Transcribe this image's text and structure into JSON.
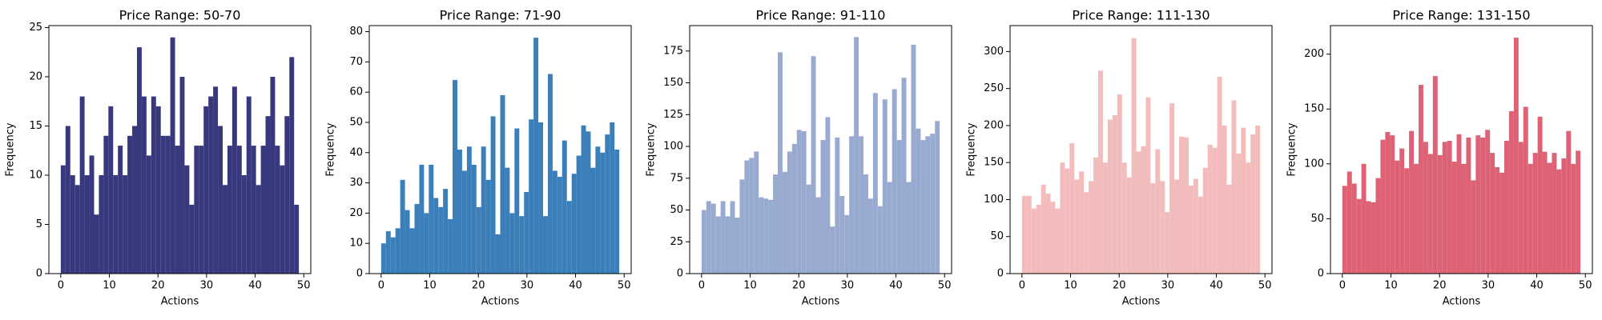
{
  "chart_data": [
    {
      "type": "histogram",
      "title": "Price Range: 50-70",
      "xlabel": "Actions",
      "ylabel": "Frequency",
      "color": "#38387f",
      "bins": [
        0,
        0.98,
        1.96,
        2.94,
        3.92,
        4.9,
        5.88,
        6.86,
        7.84,
        8.82,
        9.8,
        10.78,
        11.76,
        12.74,
        13.72,
        14.7,
        15.68,
        16.66,
        17.64,
        18.62,
        19.6,
        20.58,
        21.56,
        22.54,
        23.52,
        24.5,
        25.48,
        26.46,
        27.44,
        28.42,
        29.4,
        30.38,
        31.36,
        32.34,
        33.32,
        34.3,
        35.28,
        36.26,
        37.24,
        38.22,
        39.2,
        40.18,
        41.16,
        42.14,
        43.12,
        44.1,
        45.08,
        46.06,
        47.04,
        48.02,
        49
      ],
      "values": [
        11,
        15,
        10,
        9,
        18,
        10,
        12,
        6,
        10,
        14,
        17,
        10,
        13,
        10,
        14,
        15,
        23,
        18,
        12,
        18,
        17,
        14,
        14,
        24,
        13,
        20,
        11,
        7,
        13,
        13,
        17,
        18,
        19,
        15,
        9,
        13,
        19,
        13,
        10,
        18,
        13,
        9,
        13,
        16,
        20,
        13,
        11,
        16,
        22,
        7
      ],
      "xlim": [
        -2.45,
        51.45
      ],
      "ylim": [
        0,
        25.2
      ],
      "xticks": [
        0,
        10,
        20,
        30,
        40,
        50
      ],
      "yticks": [
        0,
        5,
        10,
        15,
        20,
        25
      ]
    },
    {
      "type": "histogram",
      "title": "Price Range: 71-90",
      "xlabel": "Actions",
      "ylabel": "Frequency",
      "color": "#3a7fba",
      "bins": [
        0,
        0.98,
        1.96,
        2.94,
        3.92,
        4.9,
        5.88,
        6.86,
        7.84,
        8.82,
        9.8,
        10.78,
        11.76,
        12.74,
        13.72,
        14.7,
        15.68,
        16.66,
        17.64,
        18.62,
        19.6,
        20.58,
        21.56,
        22.54,
        23.52,
        24.5,
        25.48,
        26.46,
        27.44,
        28.42,
        29.4,
        30.38,
        31.36,
        32.34,
        33.32,
        34.3,
        35.28,
        36.26,
        37.24,
        38.22,
        39.2,
        40.18,
        41.16,
        42.14,
        43.12,
        44.1,
        45.08,
        46.06,
        47.04,
        48.02,
        49
      ],
      "values": [
        10,
        14,
        12,
        15,
        31,
        21,
        15,
        23,
        36,
        20,
        36,
        25,
        22,
        28,
        18,
        64,
        41,
        34,
        42,
        36,
        22,
        42,
        31,
        52,
        13,
        59,
        35,
        20,
        48,
        19,
        27,
        51,
        78,
        50,
        19,
        66,
        34,
        32,
        44,
        24,
        33,
        39,
        49,
        47,
        35,
        42,
        40,
        46,
        50,
        41
      ],
      "xlim": [
        -2.45,
        51.45
      ],
      "ylim": [
        0,
        82
      ],
      "xticks": [
        0,
        10,
        20,
        30,
        40,
        50
      ],
      "yticks": [
        0,
        10,
        20,
        30,
        40,
        50,
        60,
        70,
        80
      ]
    },
    {
      "type": "histogram",
      "title": "Price Range: 91-110",
      "xlabel": "Actions",
      "ylabel": "Frequency",
      "color": "#99aad1",
      "bins": [
        0,
        0.98,
        1.96,
        2.94,
        3.92,
        4.9,
        5.88,
        6.86,
        7.84,
        8.82,
        9.8,
        10.78,
        11.76,
        12.74,
        13.72,
        14.7,
        15.68,
        16.66,
        17.64,
        18.62,
        19.6,
        20.58,
        21.56,
        22.54,
        23.52,
        24.5,
        25.48,
        26.46,
        27.44,
        28.42,
        29.4,
        30.38,
        31.36,
        32.34,
        33.32,
        34.3,
        35.28,
        36.26,
        37.24,
        38.22,
        39.2,
        40.18,
        41.16,
        42.14,
        43.12,
        44.1,
        45.08,
        46.06,
        47.04,
        48.02,
        49
      ],
      "values": [
        50,
        57,
        55,
        45,
        57,
        45,
        57,
        44,
        74,
        89,
        91,
        96,
        60,
        59,
        58,
        78,
        174,
        80,
        96,
        102,
        113,
        112,
        70,
        171,
        60,
        105,
        123,
        37,
        107,
        61,
        46,
        108,
        186,
        108,
        78,
        59,
        142,
        53,
        137,
        72,
        145,
        105,
        154,
        72,
        180,
        114,
        105,
        108,
        110,
        120
      ],
      "xlim": [
        -2.45,
        51.45
      ],
      "ylim": [
        0,
        195
      ],
      "xticks": [
        0,
        10,
        20,
        30,
        40,
        50
      ],
      "yticks": [
        0,
        25,
        50,
        75,
        100,
        125,
        150,
        175
      ]
    },
    {
      "type": "histogram",
      "title": "Price Range: 111-130",
      "xlabel": "Actions",
      "ylabel": "Frequency",
      "color": "#f2bcbd",
      "bins": [
        0,
        0.98,
        1.96,
        2.94,
        3.92,
        4.9,
        5.88,
        6.86,
        7.84,
        8.82,
        9.8,
        10.78,
        11.76,
        12.74,
        13.72,
        14.7,
        15.68,
        16.66,
        17.64,
        18.62,
        19.6,
        20.58,
        21.56,
        22.54,
        23.52,
        24.5,
        25.48,
        26.46,
        27.44,
        28.42,
        29.4,
        30.38,
        31.36,
        32.34,
        33.32,
        34.3,
        35.28,
        36.26,
        37.24,
        38.22,
        39.2,
        40.18,
        41.16,
        42.14,
        43.12,
        44.1,
        45.08,
        46.06,
        47.04,
        48.02,
        49
      ],
      "values": [
        105,
        105,
        88,
        93,
        120,
        108,
        97,
        88,
        150,
        142,
        176,
        127,
        138,
        110,
        125,
        157,
        274,
        150,
        208,
        214,
        242,
        150,
        130,
        318,
        165,
        172,
        238,
        122,
        168,
        125,
        83,
        230,
        127,
        185,
        184,
        119,
        128,
        104,
        143,
        174,
        170,
        266,
        200,
        120,
        234,
        162,
        197,
        150,
        188,
        200
      ],
      "xlim": [
        -2.45,
        51.45
      ],
      "ylim": [
        0,
        335
      ],
      "xticks": [
        0,
        10,
        20,
        30,
        40,
        50
      ],
      "yticks": [
        0,
        50,
        100,
        150,
        200,
        250,
        300
      ]
    },
    {
      "type": "histogram",
      "title": "Price Range: 131-150",
      "xlabel": "Actions",
      "ylabel": "Frequency",
      "color": "#dd6275",
      "bins": [
        0,
        0.98,
        1.96,
        2.94,
        3.92,
        4.9,
        5.88,
        6.86,
        7.84,
        8.82,
        9.8,
        10.78,
        11.76,
        12.74,
        13.72,
        14.7,
        15.68,
        16.66,
        17.64,
        18.62,
        19.6,
        20.58,
        21.56,
        22.54,
        23.52,
        24.5,
        25.48,
        26.46,
        27.44,
        28.42,
        29.4,
        30.38,
        31.36,
        32.34,
        33.32,
        34.3,
        35.28,
        36.26,
        37.24,
        38.22,
        39.2,
        40.18,
        41.16,
        42.14,
        43.12,
        44.1,
        45.08,
        46.06,
        47.04,
        48.02,
        49
      ],
      "values": [
        80,
        93,
        82,
        68,
        100,
        66,
        65,
        87,
        122,
        129,
        126,
        103,
        114,
        96,
        130,
        100,
        172,
        120,
        109,
        180,
        108,
        120,
        121,
        102,
        127,
        100,
        124,
        85,
        126,
        124,
        131,
        110,
        97,
        92,
        121,
        148,
        215,
        120,
        152,
        100,
        110,
        143,
        111,
        101,
        110,
        95,
        105,
        130,
        100,
        112
      ],
      "xlim": [
        -2.45,
        51.45
      ],
      "ylim": [
        0,
        226
      ],
      "xticks": [
        0,
        10,
        20,
        30,
        40,
        50
      ],
      "yticks": [
        0,
        50,
        100,
        150,
        200
      ]
    }
  ]
}
